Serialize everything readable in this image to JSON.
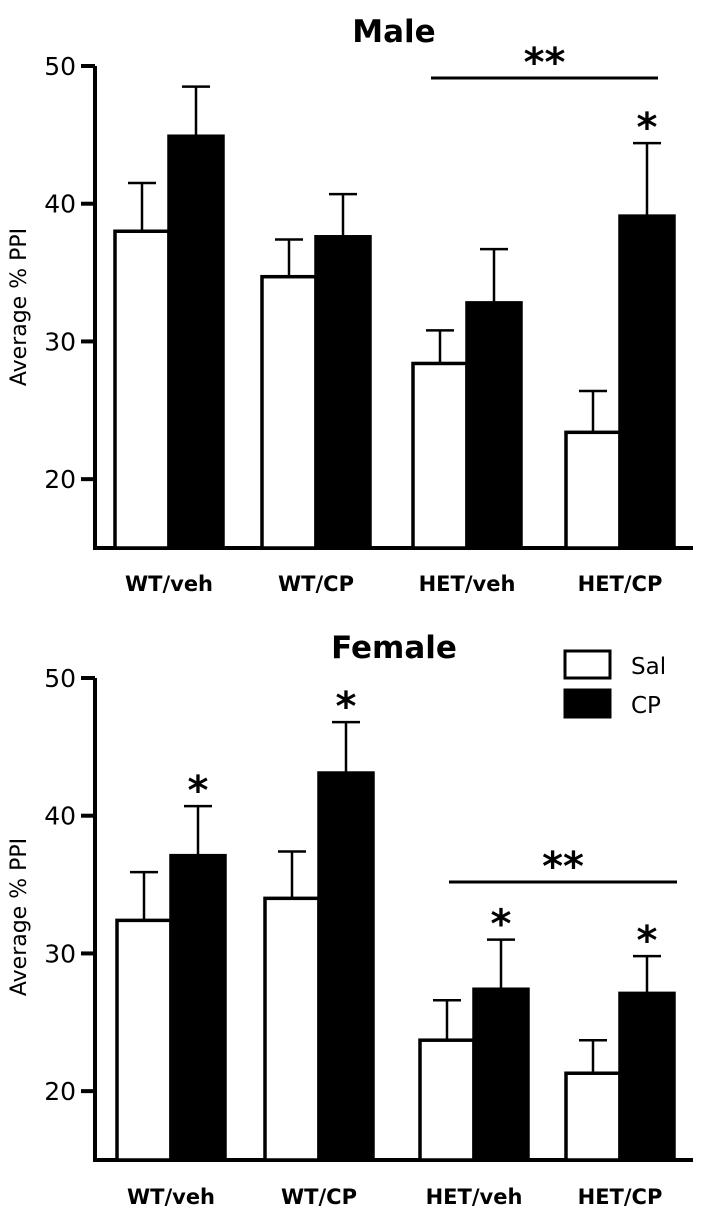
{
  "chart_data": [
    {
      "type": "bar",
      "title": "Male",
      "ylabel": "Average % PPI",
      "xlabel": "",
      "ylim": [
        15,
        50
      ],
      "yticks": [
        20,
        30,
        40,
        50
      ],
      "categories": [
        "WT/veh",
        "WT/CP",
        "HET/veh",
        "HET/CP"
      ],
      "series": [
        {
          "name": "Sal",
          "color": "#ffffff",
          "values": [
            38.0,
            34.7,
            28.4,
            23.4
          ],
          "errors": [
            3.5,
            2.7,
            2.4,
            3.0
          ]
        },
        {
          "name": "CP",
          "color": "#000000",
          "values": [
            44.9,
            37.6,
            32.8,
            39.1
          ],
          "errors": [
            3.6,
            3.1,
            3.9,
            5.3
          ]
        }
      ],
      "annotations": [
        {
          "text": "**",
          "type": "bracket",
          "from": "HET/veh",
          "to": "HET/CP"
        },
        {
          "text": "*",
          "type": "bar",
          "category": "HET/CP",
          "series": "CP"
        }
      ]
    },
    {
      "type": "bar",
      "title": "Female",
      "ylabel": "Average % PPI",
      "xlabel": "",
      "ylim": [
        15,
        50
      ],
      "yticks": [
        20,
        30,
        40,
        50
      ],
      "categories": [
        "WT/veh",
        "WT/CP",
        "HET/veh",
        "HET/CP"
      ],
      "legend": {
        "placement": "top-right",
        "entries": [
          "Sal",
          "CP"
        ]
      },
      "series": [
        {
          "name": "Sal",
          "color": "#ffffff",
          "values": [
            32.4,
            34.0,
            23.7,
            21.3
          ],
          "errors": [
            3.5,
            3.4,
            2.9,
            2.4
          ]
        },
        {
          "name": "CP",
          "color": "#000000",
          "values": [
            37.1,
            43.1,
            27.4,
            27.1
          ],
          "errors": [
            3.6,
            3.7,
            3.6,
            2.7
          ]
        }
      ],
      "annotations": [
        {
          "text": "*",
          "type": "bar",
          "category": "WT/veh",
          "series": "CP"
        },
        {
          "text": "*",
          "type": "bar",
          "category": "WT/CP",
          "series": "CP"
        },
        {
          "text": "*",
          "type": "bar",
          "category": "HET/veh",
          "series": "CP"
        },
        {
          "text": "*",
          "type": "bar",
          "category": "HET/CP",
          "series": "CP"
        },
        {
          "text": "**",
          "type": "bracket",
          "from": "HET/veh",
          "to": "HET/CP"
        }
      ]
    }
  ]
}
